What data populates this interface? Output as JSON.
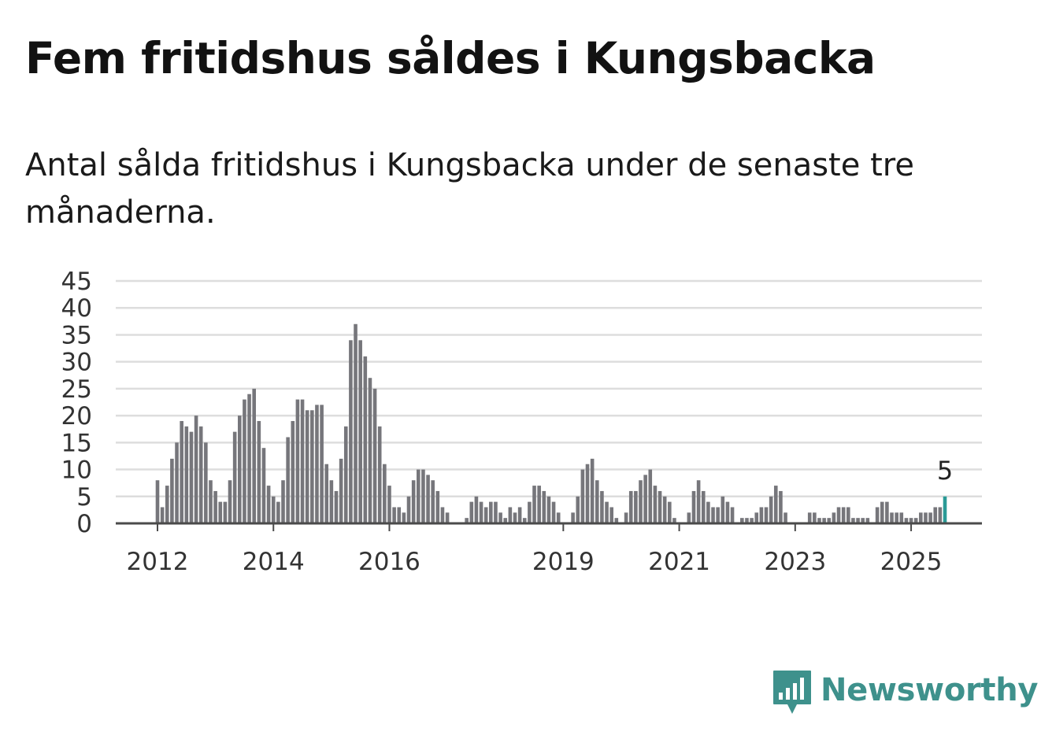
{
  "title": "Fem fritidshus såldes i Kungsbacka",
  "subtitle": "Antal sålda fritidshus i Kungsbacka under de senaste tre månaderna.",
  "brand": {
    "name": "Newsworthy",
    "color": "#3e918c",
    "icon": "chart-bubble-icon"
  },
  "chart_data": {
    "type": "bar",
    "x_start_year": 2012,
    "x_tick_labels": [
      "2012",
      "2014",
      "2016",
      "2019",
      "2021",
      "2023",
      "2025"
    ],
    "y_ticks": [
      0,
      5,
      10,
      15,
      20,
      25,
      30,
      35,
      40,
      45
    ],
    "ylim": [
      0,
      45
    ],
    "grid": true,
    "values": [
      8,
      3,
      7,
      12,
      15,
      19,
      18,
      17,
      20,
      18,
      15,
      8,
      6,
      4,
      4,
      8,
      17,
      20,
      23,
      24,
      25,
      19,
      14,
      7,
      5,
      4,
      8,
      16,
      19,
      23,
      23,
      21,
      21,
      22,
      22,
      11,
      8,
      6,
      12,
      18,
      34,
      37,
      34,
      31,
      27,
      25,
      18,
      11,
      7,
      3,
      3,
      2,
      5,
      8,
      10,
      10,
      9,
      8,
      6,
      3,
      2,
      0,
      0,
      0,
      1,
      4,
      5,
      4,
      3,
      4,
      4,
      2,
      1,
      3,
      2,
      3,
      1,
      4,
      7,
      7,
      6,
      5,
      4,
      2,
      0,
      0,
      2,
      5,
      10,
      11,
      12,
      8,
      6,
      4,
      3,
      1,
      0,
      2,
      6,
      6,
      8,
      9,
      10,
      7,
      6,
      5,
      4,
      1,
      0,
      0,
      2,
      6,
      8,
      6,
      4,
      3,
      3,
      5,
      4,
      3,
      0,
      1,
      1,
      1,
      2,
      3,
      3,
      5,
      7,
      6,
      2,
      0,
      0,
      0,
      0,
      2,
      2,
      1,
      1,
      1,
      2,
      3,
      3,
      3,
      1,
      1,
      1,
      1,
      0,
      3,
      4,
      4,
      2,
      2,
      2,
      1,
      1,
      1,
      2,
      2,
      2,
      3,
      3,
      5
    ],
    "highlight_label": "5",
    "bar_color": "#76767b",
    "highlight_color": "#2a9a96",
    "grid_color": "#dddddd",
    "axis_color": "#4a4a4a"
  }
}
